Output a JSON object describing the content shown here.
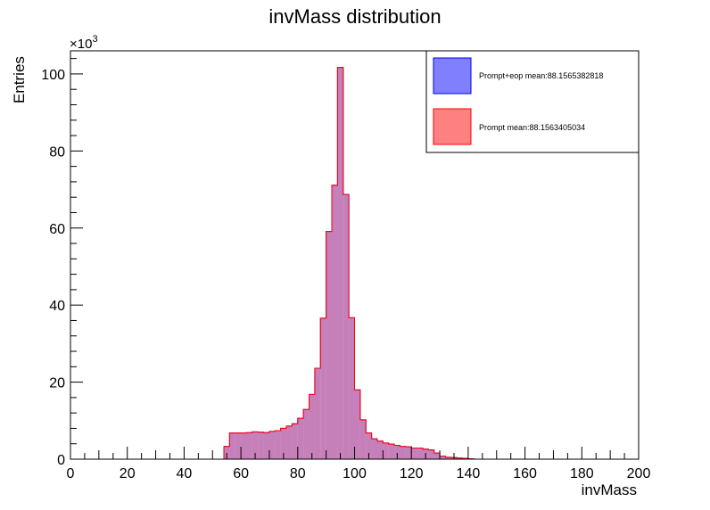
{
  "chart_data": {
    "type": "bar",
    "title": "invMass distribution",
    "xlabel": "invMass",
    "ylabel": "Entries",
    "y_multiplier_label": "×10",
    "y_multiplier_exponent": "3",
    "xlim": [
      0,
      200
    ],
    "ylim": [
      0,
      106
    ],
    "bin_width": 2,
    "x_ticks": [
      0,
      20,
      40,
      60,
      80,
      100,
      120,
      140,
      160,
      180,
      200
    ],
    "y_ticks": [
      0,
      20,
      40,
      60,
      80,
      100
    ],
    "grid": false,
    "legend_position": "top-right",
    "series": [
      {
        "name": "Prompt+eop mean:88.1565382818",
        "fill": "#8080ff",
        "stroke": "#0000ff",
        "values": [
          0,
          0,
          0,
          0,
          0,
          0,
          0,
          0,
          0,
          0,
          0,
          0,
          0,
          0,
          0,
          0,
          0,
          0,
          0,
          0,
          0,
          0,
          0,
          0,
          0,
          0,
          0,
          3.3,
          6.8,
          6.8,
          6.8,
          6.9,
          7.1,
          7.0,
          6.9,
          7.2,
          7.4,
          8.0,
          8.6,
          9.2,
          10.6,
          12.9,
          16.8,
          23.6,
          36.6,
          59.1,
          71.1,
          101.7,
          68.7,
          36.7,
          18.0,
          10.2,
          6.8,
          5.3,
          4.7,
          4.2,
          3.9,
          3.6,
          3.3,
          3.2,
          2.9,
          2.9,
          2.6,
          2.4,
          1.6,
          0.8,
          0.5,
          0.4,
          0.3,
          0.2,
          0.1,
          0,
          0,
          0,
          0,
          0,
          0,
          0,
          0,
          0,
          0,
          0,
          0,
          0,
          0,
          0,
          0,
          0,
          0,
          0,
          0,
          0,
          0,
          0,
          0,
          0,
          0,
          0,
          0,
          0
        ]
      },
      {
        "name": "Prompt mean:88.1563405034",
        "fill": "#ff8080",
        "stroke": "#ff0000",
        "values": [
          0,
          0,
          0,
          0,
          0,
          0,
          0,
          0,
          0,
          0,
          0,
          0,
          0,
          0,
          0,
          0,
          0,
          0,
          0,
          0,
          0,
          0,
          0,
          0,
          0,
          0,
          0,
          3.3,
          6.8,
          6.8,
          6.8,
          6.9,
          7.1,
          7.0,
          6.9,
          7.2,
          7.4,
          8.0,
          8.6,
          9.2,
          10.6,
          12.9,
          16.8,
          23.6,
          36.6,
          59.1,
          71.1,
          101.7,
          68.7,
          36.7,
          18.0,
          10.2,
          6.8,
          5.3,
          4.7,
          4.2,
          3.9,
          3.6,
          3.3,
          3.2,
          2.9,
          2.9,
          2.6,
          2.4,
          1.6,
          0.8,
          0.5,
          0.4,
          0.3,
          0.2,
          0.1,
          0,
          0,
          0,
          0,
          0,
          0,
          0,
          0,
          0,
          0,
          0,
          0,
          0,
          0,
          0,
          0,
          0,
          0,
          0,
          0,
          0,
          0,
          0,
          0,
          0,
          0,
          0,
          0,
          0
        ]
      }
    ]
  }
}
